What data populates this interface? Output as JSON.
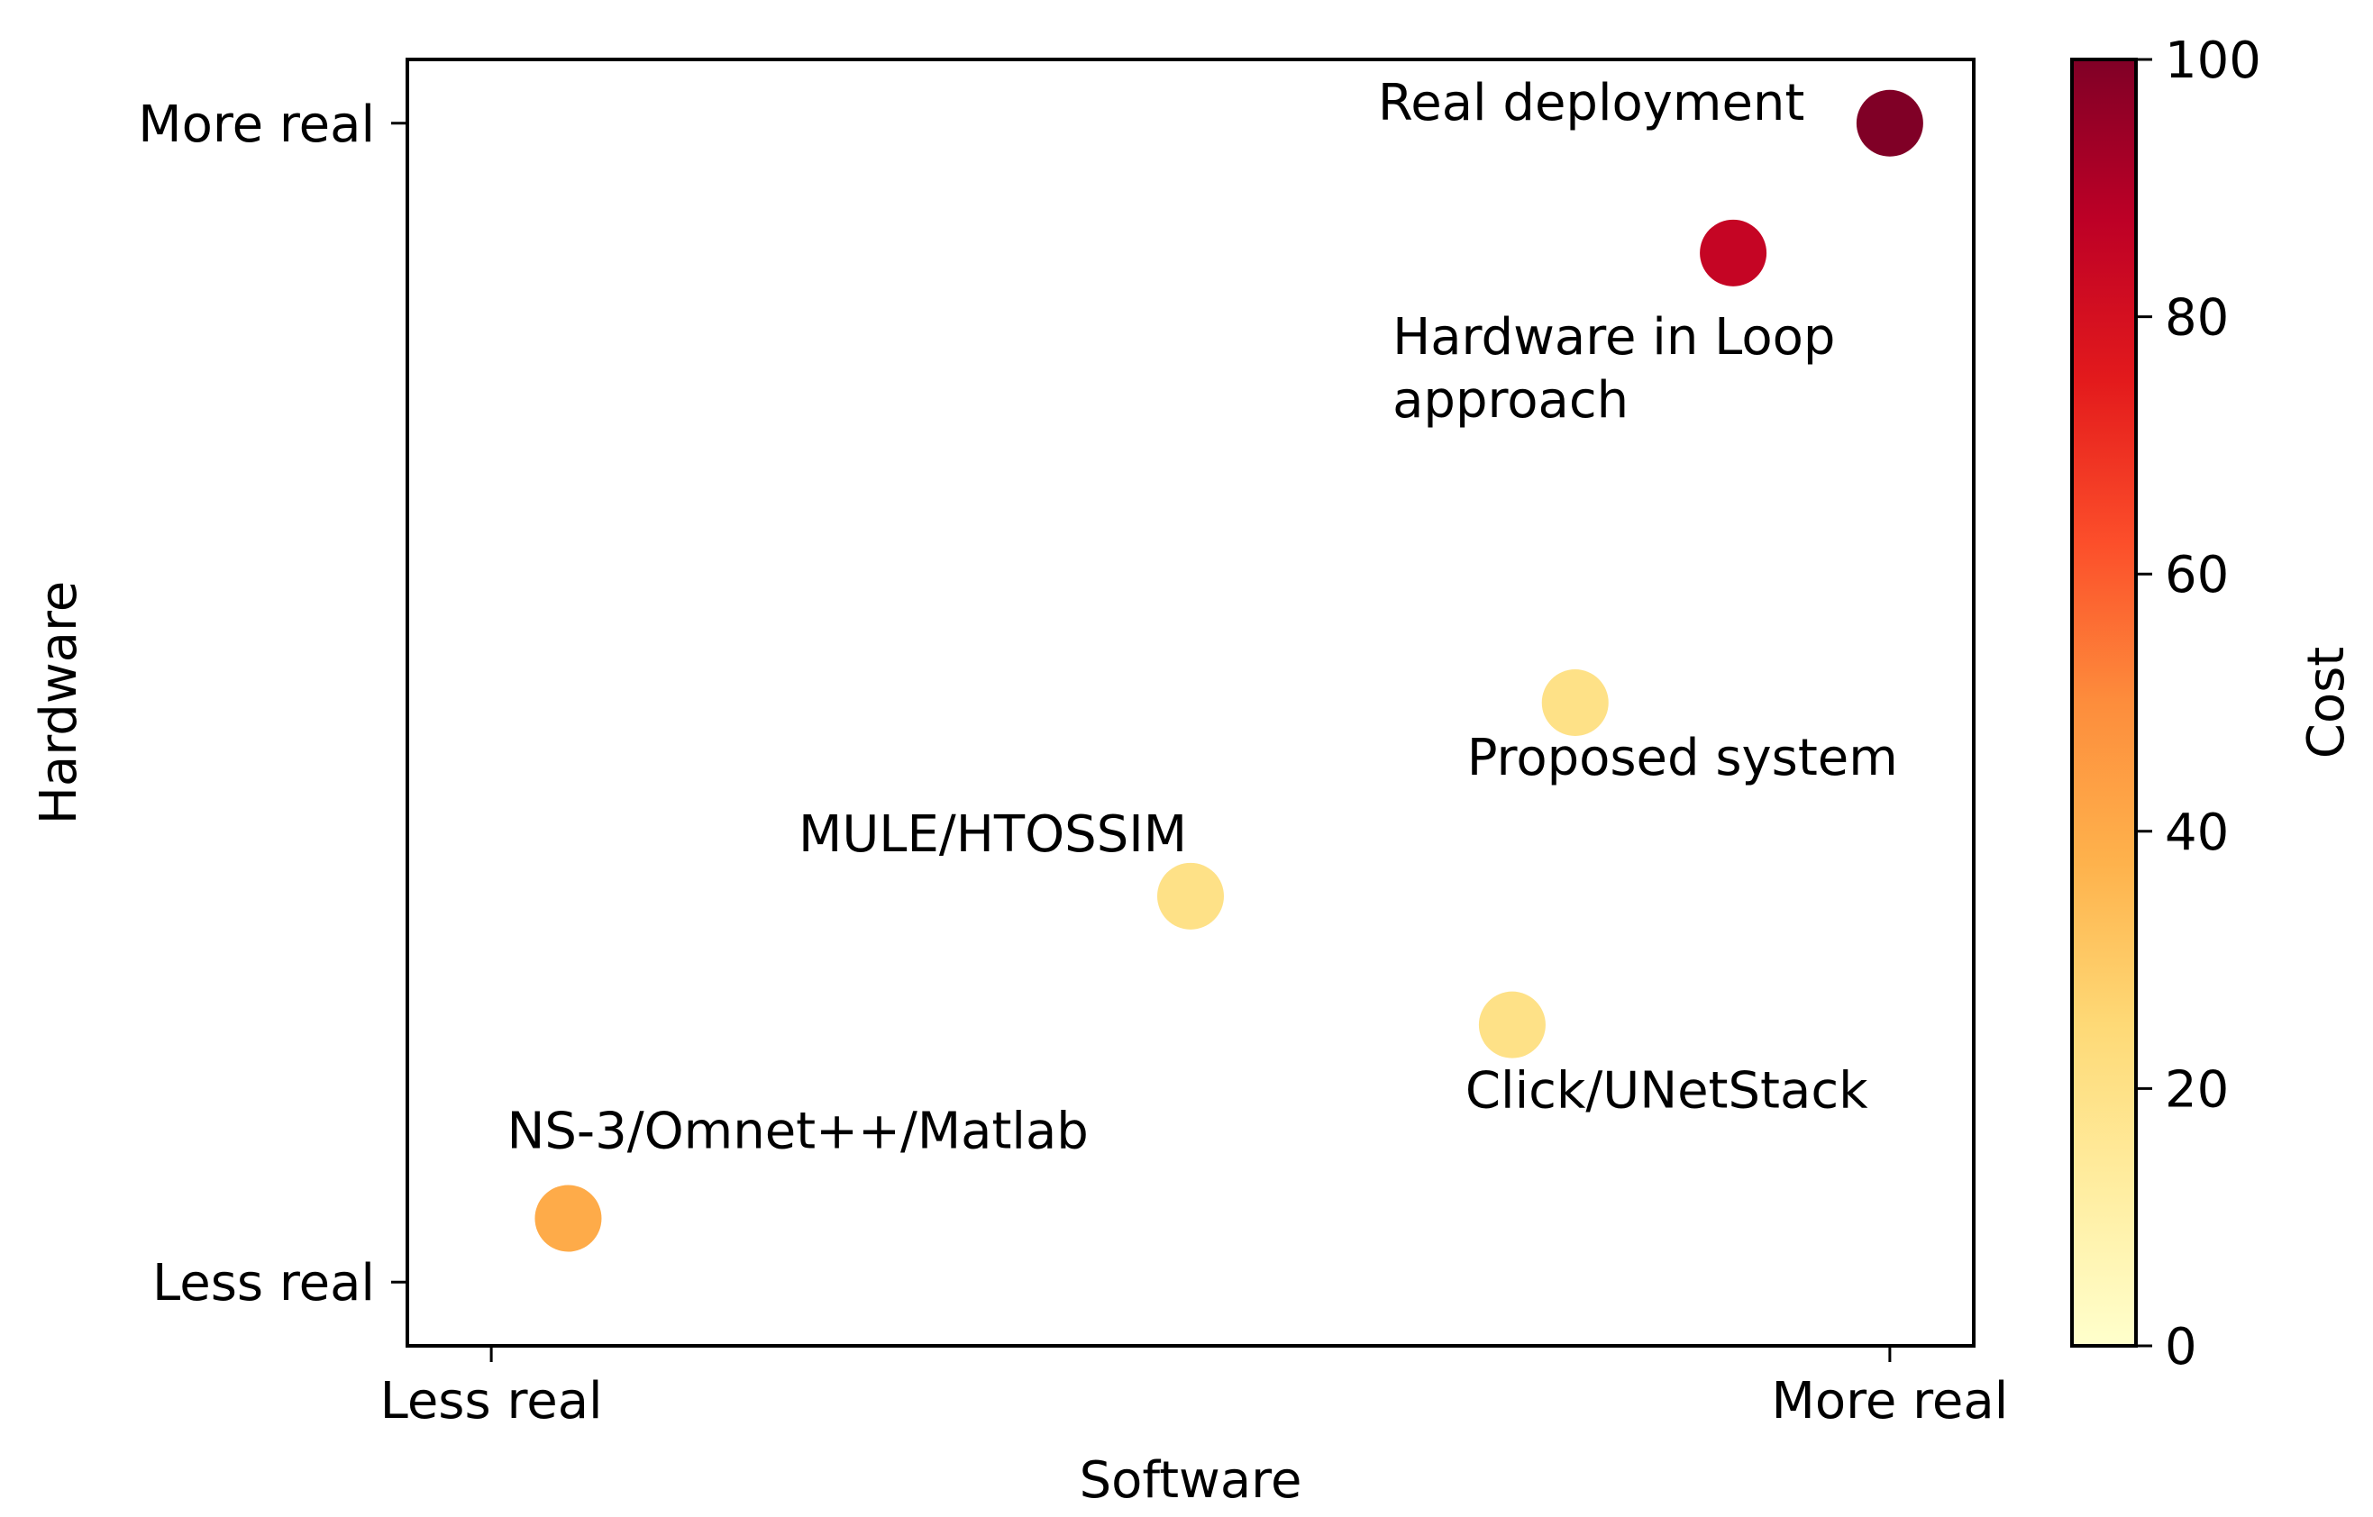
{
  "chart_data": {
    "type": "scatter",
    "title": "",
    "xlabel": "Software",
    "ylabel": "Hardware",
    "xlim": [
      -0.06,
      1.06
    ],
    "ylim": [
      -0.055,
      1.055
    ],
    "xticks": [
      {
        "value": 0,
        "label": "Less real"
      },
      {
        "value": 1,
        "label": "More real"
      }
    ],
    "yticks": [
      {
        "value": 0,
        "label": "Less real"
      },
      {
        "value": 1,
        "label": "More real"
      }
    ],
    "colorbar": {
      "label": "Cost",
      "range": [
        0,
        100
      ],
      "ticks": [
        0,
        20,
        40,
        60,
        80,
        100
      ],
      "colormap": "YlOrRd",
      "stops": [
        "#ffffcc",
        "#ffeda0",
        "#fed976",
        "#feb24c",
        "#fd8d3c",
        "#fc4e2a",
        "#e31a1c",
        "#bd0026",
        "#800026"
      ]
    },
    "points": [
      {
        "label": "NS-3/Omnet++/Matlab",
        "x": 0.055,
        "y": 0.055,
        "cost": 40
      },
      {
        "label": "MULE/HTOSSIM",
        "x": 0.5,
        "y": 0.333,
        "cost": 20
      },
      {
        "label": "Click/UNetStack",
        "x": 0.73,
        "y": 0.222,
        "cost": 20
      },
      {
        "label": "Proposed system",
        "x": 0.775,
        "y": 0.5,
        "cost": 20
      },
      {
        "label": "Hardware in Loop\napproach",
        "x": 0.888,
        "y": 0.888,
        "cost": 85
      },
      {
        "label": "Real deployment",
        "x": 1.0,
        "y": 1.0,
        "cost": 100
      }
    ]
  }
}
